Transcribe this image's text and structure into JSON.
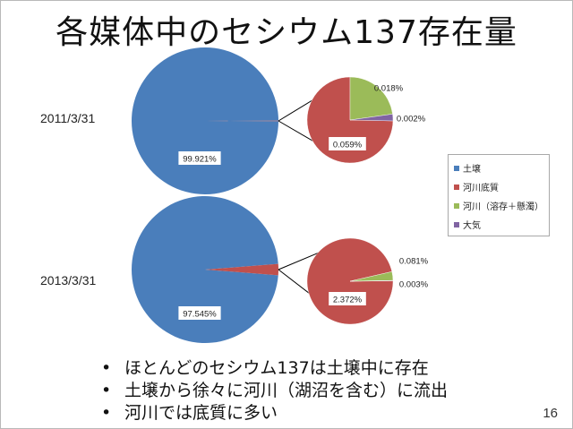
{
  "slide": {
    "title": "各媒体中のセシウム137存在量",
    "page_number": "16"
  },
  "legend": [
    {
      "label": "土壌",
      "color": "#4A7EBB"
    },
    {
      "label": "河川底質",
      "color": "#C0504D"
    },
    {
      "label": "河川（溶存＋懸濁）",
      "color": "#9BBB59"
    },
    {
      "label": "大気",
      "color": "#8064A2"
    }
  ],
  "bullets": [
    "ほとんどのセシウム137は土壌中に存在",
    "土壌から徐々に河川（湖沼を含む）に流出",
    "河川では底質に多い"
  ],
  "chart_data": [
    {
      "type": "pie",
      "title": "2011/3/31",
      "categories": [
        "土壌",
        "河川底質",
        "河川（溶存＋懸濁）",
        "大気"
      ],
      "values": [
        99.921,
        0.059,
        0.018,
        0.002
      ],
      "labels": [
        "99.921%",
        "0.059%",
        "0.018%",
        "0.002%"
      ],
      "exploded_detail": [
        "河川底質",
        "河川（溶存＋懸濁）",
        "大気"
      ],
      "legend_position": "right"
    },
    {
      "type": "pie",
      "title": "2013/3/31",
      "categories": [
        "土壌",
        "河川底質",
        "河川（溶存＋懸濁）",
        "大気"
      ],
      "values": [
        97.545,
        2.372,
        0.081,
        0.003
      ],
      "labels": [
        "97.545%",
        "2.372%",
        "0.081%",
        "0.003%"
      ],
      "exploded_detail": [
        "河川底質",
        "河川（溶存＋懸濁）",
        "大気"
      ],
      "legend_position": "right"
    }
  ]
}
